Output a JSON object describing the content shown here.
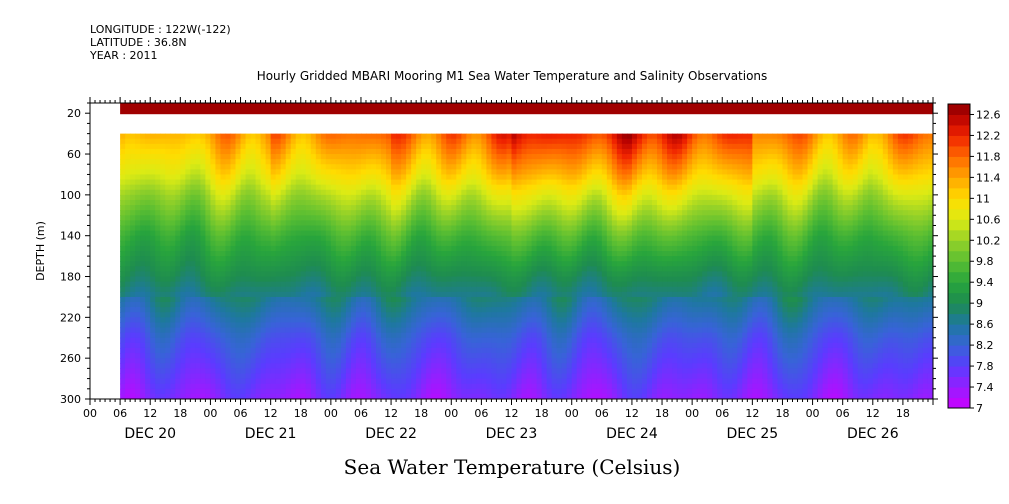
{
  "header": {
    "longitude": "LONGITUDE : 122W(-122)",
    "latitude": "LATITUDE : 36.8N",
    "year": "YEAR : 2011"
  },
  "chart_data": {
    "type": "heatmap",
    "title": "Hourly Gridded MBARI Mooring M1 Sea Water Temperature and Salinity Observations",
    "xlabel": "",
    "ylabel": "DEPTH (m)",
    "colorbar_label": "Sea Water Temperature (Celsius)",
    "x_range_hours": [
      0,
      168
    ],
    "data_start_hour": 6,
    "y_range": [
      300,
      10
    ],
    "y_ticks": [
      20,
      60,
      100,
      140,
      180,
      220,
      260,
      300
    ],
    "hour_tick_labels": [
      "00",
      "06",
      "12",
      "18",
      "00",
      "06",
      "12",
      "18",
      "00",
      "06",
      "12",
      "18",
      "00",
      "06",
      "12",
      "18",
      "00",
      "06",
      "12",
      "18",
      "00",
      "06",
      "12",
      "18",
      "00",
      "06",
      "12",
      "18"
    ],
    "day_labels": [
      "DEC 20",
      "DEC 21",
      "DEC 22",
      "DEC 23",
      "DEC 24",
      "DEC 25",
      "DEC 26"
    ],
    "colorbar_ticks": [
      "12.6",
      "12.2",
      "11.8",
      "11.4",
      "11",
      "10.6",
      "10.2",
      "9.8",
      "9.4",
      "9",
      "8.6",
      "8.2",
      "7.8",
      "7.4",
      "7"
    ],
    "color_range": [
      7,
      12.8
    ],
    "gap_depth_range": [
      20,
      40
    ],
    "near_surface_temperature": 12.7,
    "profile_depths": [
      40,
      60,
      80,
      100,
      120,
      140,
      160,
      180,
      200,
      220,
      240,
      260,
      280,
      300
    ],
    "profile_typical_temperature": [
      11.7,
      11.3,
      10.9,
      10.4,
      10.0,
      9.6,
      9.3,
      9.0,
      8.7,
      8.4,
      8.1,
      7.9,
      7.7,
      7.5
    ],
    "upper_layer_bands": [
      {
        "hours": [
          6,
          36
        ],
        "temp_60m": 11.0
      },
      {
        "hours": [
          36,
          60
        ],
        "temp_60m": 11.3
      },
      {
        "hours": [
          60,
          84
        ],
        "temp_60m": 11.5
      },
      {
        "hours": [
          84,
          108
        ],
        "temp_60m": 11.9
      },
      {
        "hours": [
          108,
          132
        ],
        "temp_60m": 11.8
      },
      {
        "hours": [
          132,
          156
        ],
        "temp_60m": 11.2
      },
      {
        "hours": [
          156,
          168
        ],
        "temp_60m": 11.3
      }
    ]
  }
}
